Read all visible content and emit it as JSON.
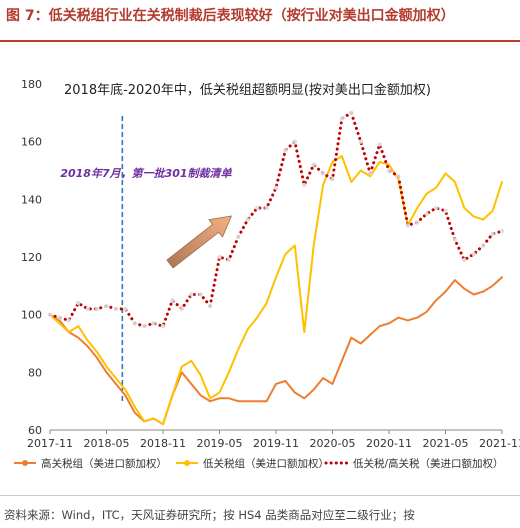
{
  "figure": {
    "title": "图 7：低关税组行业在关税制裁后表现较好（按行业对美出口金额加权）",
    "source": "资料来源：Wind，ITC，天风证券研究所；按 HS4 品类商品对应至二级行业；按"
  },
  "chart_data": {
    "type": "line",
    "x_ticks": [
      "2017-11",
      "2018-05",
      "2018-11",
      "2019-05",
      "2019-11",
      "2020-05",
      "2020-11",
      "2021-05",
      "2021-11"
    ],
    "x": [
      "2017-11",
      "2017-12",
      "2018-01",
      "2018-02",
      "2018-03",
      "2018-04",
      "2018-05",
      "2018-06",
      "2018-07",
      "2018-08",
      "2018-09",
      "2018-10",
      "2018-11",
      "2018-12",
      "2019-01",
      "2019-02",
      "2019-03",
      "2019-04",
      "2019-05",
      "2019-06",
      "2019-07",
      "2019-08",
      "2019-09",
      "2019-10",
      "2019-11",
      "2019-12",
      "2020-01",
      "2020-02",
      "2020-03",
      "2020-04",
      "2020-05",
      "2020-06",
      "2020-07",
      "2020-08",
      "2020-09",
      "2020-10",
      "2020-11",
      "2020-12",
      "2021-01",
      "2021-02",
      "2021-03",
      "2021-04",
      "2021-05",
      "2021-06",
      "2021-07",
      "2021-08",
      "2021-09",
      "2021-10",
      "2021-11"
    ],
    "ylim": [
      60,
      180
    ],
    "y_ticks": [
      60,
      80,
      100,
      120,
      140,
      160,
      180
    ],
    "series": [
      {
        "name": "高关税组（美进口额加权）",
        "color": "#ed7d31",
        "style": "solid",
        "values": [
          100,
          98,
          94,
          92,
          89,
          85,
          80,
          76,
          72,
          66,
          63,
          64,
          62,
          72,
          80,
          76,
          72,
          70,
          71,
          71,
          70,
          70,
          70,
          70,
          76,
          77,
          73,
          71,
          74,
          78,
          76,
          84,
          92,
          90,
          93,
          96,
          97,
          99,
          98,
          99,
          101,
          105,
          108,
          112,
          109,
          107,
          108,
          110,
          113
        ]
      },
      {
        "name": "低关税组（美进口额加权）",
        "color": "#ffc000",
        "style": "solid",
        "values": [
          100,
          97,
          94,
          96,
          91,
          87,
          82,
          78,
          74,
          68,
          63,
          64,
          62,
          72,
          82,
          84,
          79,
          71,
          73,
          80,
          88,
          95,
          99,
          104,
          113,
          121,
          124,
          94,
          124,
          145,
          153,
          155,
          146,
          150,
          148,
          153,
          152,
          147,
          131,
          137,
          142,
          144,
          149,
          146,
          137,
          134,
          133,
          136,
          146
        ]
      },
      {
        "name": "低关税/高关税（美进口额加权）",
        "color": "#c00000",
        "style": "dotted",
        "values": [
          100,
          99,
          98,
          104,
          102,
          102,
          103,
          102,
          102,
          97,
          96,
          97,
          96,
          105,
          102,
          107,
          107,
          103,
          120,
          119,
          127,
          133,
          137,
          137,
          144,
          157,
          160,
          145,
          152,
          149,
          147,
          168,
          170,
          160,
          149,
          159,
          150,
          148,
          131,
          132,
          135,
          137,
          136,
          126,
          119,
          121,
          124,
          128,
          129
        ]
      }
    ],
    "annotations": {
      "main": "2018年底-2020年中，低关税组超额明显(按对美出口金额加权)",
      "event": "2018年7月，第一批301制裁清单",
      "event_x": "2018-07"
    },
    "legend_position": "bottom",
    "grid": false
  }
}
